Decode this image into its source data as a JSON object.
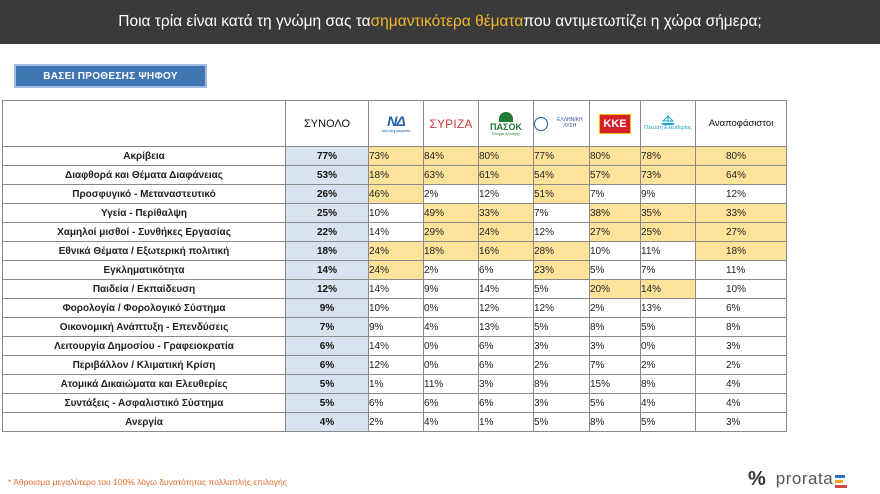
{
  "header": {
    "title_pre": "Ποια τρία είναι κατά τη γνώμη σας τα ",
    "title_accent": "σημαντικότερα θέματα",
    "title_post": " που αντιμετωπίζει η χώρα σήμερα;"
  },
  "basis_button": "ΒΑΣΕΙ ΠΡΟΘΕΣΗΣ ΨΗΦΟΥ",
  "table": {
    "total_header": "ΣΥΝΟΛΟ",
    "parties": [
      {
        "id": "nd",
        "logo_text": "ΝΔ",
        "logo_sub": "Νέα Δημοκρατία"
      },
      {
        "id": "syriza",
        "logo_text": "ΣΥΡΙΖΑ"
      },
      {
        "id": "pasok",
        "logo_text": "ΠΑΣΟΚ",
        "logo_sub": "Κίνημα Αλλαγής"
      },
      {
        "id": "elliniki",
        "logo_text": "ΕΛΛΗΝΙΚΗ ΛΥΣΗ"
      },
      {
        "id": "kke",
        "logo_text": "ΚΚΕ"
      },
      {
        "id": "plefsi",
        "logo_text": "Πλεύση Ελευθερίας"
      }
    ],
    "undecided_header": "Αναποφάσιστοι",
    "rows": [
      {
        "label": "Ακρίβεια",
        "total": "77%",
        "values": [
          "73%",
          "84%",
          "80%",
          "77%",
          "80%",
          "78%",
          "80%"
        ],
        "hl": [
          1,
          1,
          1,
          1,
          1,
          1,
          1
        ]
      },
      {
        "label": "Διαφθορά και Θέματα Διαφάνειας",
        "total": "53%",
        "values": [
          "18%",
          "63%",
          "61%",
          "54%",
          "57%",
          "73%",
          "64%"
        ],
        "hl": [
          1,
          1,
          1,
          1,
          1,
          1,
          1
        ]
      },
      {
        "label": "Προσφυγικό - Μεταναστευτικό",
        "total": "26%",
        "values": [
          "46%",
          "2%",
          "12%",
          "51%",
          "7%",
          "9%",
          "12%"
        ],
        "hl": [
          1,
          0,
          0,
          1,
          0,
          0,
          0
        ]
      },
      {
        "label": "Υγεία - Περίθαλψη",
        "total": "25%",
        "values": [
          "10%",
          "49%",
          "33%",
          "7%",
          "38%",
          "35%",
          "33%"
        ],
        "hl": [
          0,
          1,
          1,
          0,
          1,
          1,
          1
        ]
      },
      {
        "label": "Χαμηλοί μισθοί - Συνθήκες Εργασίας",
        "total": "22%",
        "values": [
          "14%",
          "29%",
          "24%",
          "12%",
          "27%",
          "25%",
          "27%"
        ],
        "hl": [
          0,
          1,
          1,
          0,
          1,
          1,
          1
        ]
      },
      {
        "label": "Εθνικά Θέματα / Εξωτερική πολιτική",
        "total": "18%",
        "values": [
          "24%",
          "18%",
          "16%",
          "28%",
          "10%",
          "11%",
          "18%"
        ],
        "hl": [
          1,
          1,
          1,
          1,
          0,
          0,
          1
        ]
      },
      {
        "label": "Εγκληματικότητα",
        "total": "14%",
        "values": [
          "24%",
          "2%",
          "6%",
          "23%",
          "5%",
          "7%",
          "11%"
        ],
        "hl": [
          1,
          0,
          0,
          1,
          0,
          0,
          0
        ]
      },
      {
        "label": "Παιδεία / Εκπαίδευση",
        "total": "12%",
        "values": [
          "14%",
          "9%",
          "14%",
          "5%",
          "20%",
          "14%",
          "10%"
        ],
        "hl": [
          0,
          0,
          0,
          0,
          1,
          1,
          0
        ]
      },
      {
        "label": "Φορολογία / Φορολογικό Σύστημα",
        "total": "9%",
        "values": [
          "10%",
          "0%",
          "12%",
          "12%",
          "2%",
          "13%",
          "6%"
        ],
        "hl": [
          0,
          0,
          0,
          0,
          0,
          0,
          0
        ]
      },
      {
        "label": "Οικονομική Ανάπτυξη - Επενδύσεις",
        "total": "7%",
        "values": [
          "9%",
          "4%",
          "13%",
          "5%",
          "8%",
          "5%",
          "8%"
        ],
        "hl": [
          0,
          0,
          0,
          0,
          0,
          0,
          0
        ]
      },
      {
        "label": "Λειτουργία Δημοσίου - Γραφειοκρατία",
        "total": "6%",
        "values": [
          "14%",
          "0%",
          "6%",
          "3%",
          "3%",
          "0%",
          "3%"
        ],
        "hl": [
          0,
          0,
          0,
          0,
          0,
          0,
          0
        ]
      },
      {
        "label": "Περιβάλλον / Κλιματική Κρίση",
        "total": "6%",
        "values": [
          "12%",
          "0%",
          "6%",
          "2%",
          "7%",
          "2%",
          "2%"
        ],
        "hl": [
          0,
          0,
          0,
          0,
          0,
          0,
          0
        ]
      },
      {
        "label": "Ατομικά Δικαιώματα και Ελευθερίες",
        "total": "5%",
        "values": [
          "1%",
          "11%",
          "3%",
          "8%",
          "15%",
          "8%",
          "4%"
        ],
        "hl": [
          0,
          0,
          0,
          0,
          0,
          0,
          0
        ]
      },
      {
        "label": "Συντάξεις - Ασφαλιστικό Σύστημα",
        "total": "5%",
        "values": [
          "6%",
          "6%",
          "6%",
          "3%",
          "5%",
          "4%",
          "4%"
        ],
        "hl": [
          0,
          0,
          0,
          0,
          0,
          0,
          0
        ]
      },
      {
        "label": "Ανεργία",
        "total": "4%",
        "values": [
          "2%",
          "4%",
          "1%",
          "5%",
          "8%",
          "5%",
          "3%"
        ],
        "hl": [
          0,
          0,
          0,
          0,
          0,
          0,
          0
        ]
      }
    ]
  },
  "footnote": "* Άθροισμα μεγαλύτερο του 100% λόγω δυνατότητας πολλαπλής επιλογής",
  "brand": {
    "symbol": "%",
    "name": "prorata"
  },
  "colors": {
    "header_bg": "#3a3a3a",
    "accent": "#f3b829",
    "highlight": "#fde39a",
    "total_bg": "#d9e2ef",
    "button_bg": "#3f76b2",
    "footnote": "#e46a2a"
  }
}
